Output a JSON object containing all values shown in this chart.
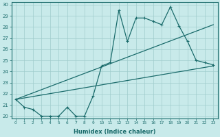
{
  "xlabel": "Humidex (Indice chaleur)",
  "bg_color": "#c8eaea",
  "line_color": "#1a6b6b",
  "grid_color": "#a0cccc",
  "xlim": [
    -0.5,
    23.5
  ],
  "ylim": [
    19.8,
    30.2
  ],
  "xticks": [
    0,
    1,
    2,
    3,
    4,
    5,
    6,
    7,
    8,
    9,
    10,
    11,
    12,
    13,
    14,
    15,
    16,
    17,
    18,
    19,
    20,
    21,
    22,
    23
  ],
  "yticks": [
    20,
    21,
    22,
    23,
    24,
    25,
    26,
    27,
    28,
    29,
    30
  ],
  "line1_x": [
    0,
    1,
    2,
    3,
    4,
    5,
    6,
    7,
    8,
    9,
    10,
    11,
    12,
    13,
    14,
    15,
    16,
    17,
    18,
    19,
    20,
    21,
    22,
    23
  ],
  "line1_y": [
    21.5,
    20.8,
    20.6,
    20.0,
    20.0,
    20.0,
    20.8,
    20.0,
    20.0,
    21.8,
    24.5,
    24.8,
    29.5,
    26.7,
    28.8,
    28.8,
    28.5,
    28.2,
    29.8,
    28.1,
    26.7,
    25.0,
    24.8,
    24.6
  ],
  "line2_x": [
    0,
    23
  ],
  "line2_y": [
    21.5,
    28.2
  ],
  "line3_x": [
    0,
    23
  ],
  "line3_y": [
    21.5,
    24.5
  ]
}
